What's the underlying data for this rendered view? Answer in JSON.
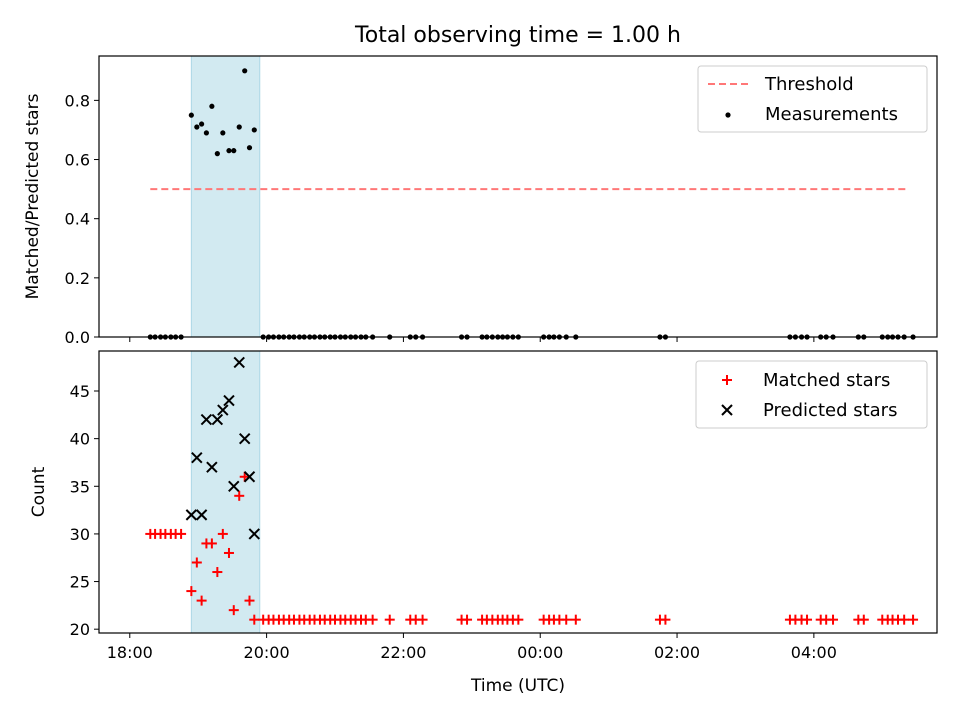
{
  "figure": {
    "title": "Total observing time = 1.00 h"
  },
  "colors": {
    "threshold": "#ff7777",
    "measurements": "#000000",
    "matched": "#ff0000",
    "predicted": "#000000",
    "span_fill": "#add8e6"
  },
  "x_axis": {
    "label": "Time (UTC)",
    "range_hours": [
      17.55,
      29.8
    ],
    "ticks": [
      {
        "hour": 18,
        "label": "18:00"
      },
      {
        "hour": 20,
        "label": "20:00"
      },
      {
        "hour": 22,
        "label": "22:00"
      },
      {
        "hour": 24,
        "label": "00:00"
      },
      {
        "hour": 26,
        "label": "02:00"
      },
      {
        "hour": 28,
        "label": "04:00"
      }
    ]
  },
  "chart_data": [
    {
      "type": "scatter",
      "panel": "top",
      "ylabel": "Matched/Predicted stars",
      "ylim": [
        0,
        0.95
      ],
      "yticks": [
        "0.0",
        "0.2",
        "0.4",
        "0.6",
        "0.8"
      ],
      "highlight_span_hours": [
        18.9,
        19.9
      ],
      "threshold": {
        "name": "Threshold",
        "y": 0.5,
        "x_start": 18.3,
        "x_end": 29.35
      },
      "series": [
        {
          "name": "Measurements",
          "points_x": [
            18.9,
            18.98,
            19.05,
            19.12,
            19.2,
            19.28,
            19.36,
            19.45,
            19.52,
            19.6,
            19.68,
            19.75,
            19.82
          ],
          "points_y": [
            0.75,
            0.71,
            0.72,
            0.69,
            0.78,
            0.62,
            0.69,
            0.63,
            0.63,
            0.71,
            0.9,
            0.64,
            0.7
          ],
          "zero_x": [
            18.3,
            18.37,
            18.45,
            18.52,
            18.6,
            18.67,
            18.75,
            19.95,
            20.03,
            20.1,
            20.18,
            20.25,
            20.33,
            20.4,
            20.48,
            20.55,
            20.63,
            20.7,
            20.78,
            20.85,
            20.93,
            21.0,
            21.08,
            21.15,
            21.23,
            21.3,
            21.38,
            21.45,
            21.55,
            21.8,
            22.1,
            22.18,
            22.28,
            22.85,
            22.93,
            23.15,
            23.22,
            23.3,
            23.38,
            23.45,
            23.52,
            23.6,
            23.68,
            24.05,
            24.13,
            24.2,
            24.28,
            24.38,
            24.52,
            25.75,
            25.83,
            27.65,
            27.73,
            27.82,
            27.9,
            28.1,
            28.18,
            28.28,
            28.65,
            28.73,
            29.0,
            29.08,
            29.15,
            29.23,
            29.32,
            29.45
          ],
          "zero_y": 0
        }
      ]
    },
    {
      "type": "scatter",
      "panel": "bottom",
      "ylabel": "Count",
      "ylim": [
        19.6,
        49.2
      ],
      "yticks": [
        "20",
        "25",
        "30",
        "35",
        "40",
        "45"
      ],
      "highlight_span_hours": [
        18.9,
        19.9
      ],
      "series": [
        {
          "name": "Matched stars",
          "x": [
            18.3,
            18.37,
            18.45,
            18.52,
            18.6,
            18.67,
            18.75,
            18.9,
            18.98,
            19.05,
            19.12,
            19.2,
            19.28,
            19.36,
            19.45,
            19.52,
            19.6,
            19.68,
            19.75,
            19.82,
            19.95,
            20.03,
            20.1,
            20.18,
            20.25,
            20.33,
            20.4,
            20.48,
            20.55,
            20.63,
            20.7,
            20.78,
            20.85,
            20.93,
            21.0,
            21.08,
            21.15,
            21.23,
            21.3,
            21.38,
            21.45,
            21.55,
            21.8,
            22.1,
            22.18,
            22.28,
            22.85,
            22.93,
            23.15,
            23.22,
            23.3,
            23.38,
            23.45,
            23.52,
            23.6,
            23.68,
            24.05,
            24.13,
            24.2,
            24.28,
            24.38,
            24.52,
            25.75,
            25.83,
            27.65,
            27.73,
            27.82,
            27.9,
            28.1,
            28.18,
            28.28,
            28.65,
            28.73,
            29.0,
            29.08,
            29.15,
            29.23,
            29.32,
            29.45
          ],
          "y": [
            30,
            30,
            30,
            30,
            30,
            30,
            30,
            24,
            27,
            23,
            29,
            29,
            26,
            30,
            28,
            22,
            34,
            36,
            23,
            21,
            21,
            21,
            21,
            21,
            21,
            21,
            21,
            21,
            21,
            21,
            21,
            21,
            21,
            21,
            21,
            21,
            21,
            21,
            21,
            21,
            21,
            21,
            21,
            21,
            21,
            21,
            21,
            21,
            21,
            21,
            21,
            21,
            21,
            21,
            21,
            21,
            21,
            21,
            21,
            21,
            21,
            21,
            21,
            21,
            21,
            21,
            21,
            21,
            21,
            21,
            21,
            21,
            21,
            21,
            21,
            21,
            21,
            21,
            21
          ]
        },
        {
          "name": "Predicted stars",
          "x": [
            18.9,
            18.98,
            19.05,
            19.12,
            19.2,
            19.28,
            19.36,
            19.45,
            19.52,
            19.6,
            19.68,
            19.75,
            19.82
          ],
          "y": [
            32,
            38,
            32,
            42,
            37,
            42,
            43,
            44,
            35,
            48,
            40,
            36,
            30
          ]
        }
      ]
    }
  ]
}
